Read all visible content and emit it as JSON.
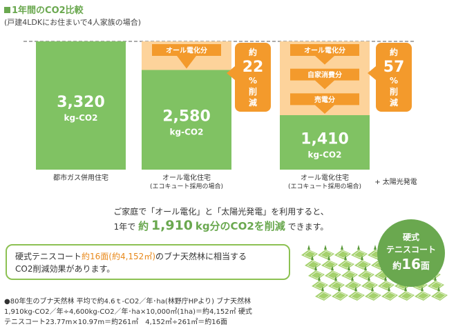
{
  "header": {
    "title": "1年間のCO2比較",
    "subtitle": "(戸建4LDKにお住まいで4人家族の場合)"
  },
  "chart_data": {
    "type": "bar",
    "unit": "kg-CO2",
    "categories": [
      "都市ガス併用住宅",
      "オール電化住宅",
      "オール電化住宅"
    ],
    "category_notes": [
      "",
      "(エコキュート採用の場合)",
      "(エコキュート採用の場合)"
    ],
    "category_extra": [
      "",
      "",
      "+ 太陽光発電"
    ],
    "values": [
      3320,
      2580,
      1410
    ],
    "value_labels": [
      "3,320",
      "2,580",
      "1,410"
    ],
    "ylim": [
      0,
      3320
    ],
    "reduction_labels": [
      [],
      [
        "オール電化分"
      ],
      [
        "オール電化分",
        "自家消費分",
        "売電分"
      ]
    ],
    "callouts": [
      {
        "prefix": "約",
        "number": "22",
        "suffix1": "%",
        "suffix2": "削",
        "suffix3": "減"
      },
      {
        "prefix": "約",
        "number": "57",
        "suffix1": "%",
        "suffix2": "削",
        "suffix3": "減"
      }
    ],
    "colors": {
      "bar": "#80c263",
      "reduction": "#fdd39b",
      "arrow": "#f39a2c",
      "callout": "#f39a2c"
    }
  },
  "summary": {
    "line1": "ご家庭で「オール電化」と「太陽光発電」を利用すると、",
    "line2_pre": "1年で",
    "line2_em1": "約",
    "line2_big": "1,910",
    "line2_em2": "kg分のCO2を削減",
    "line2_post": "できます。"
  },
  "tennis": {
    "text1": "硬式テニスコート",
    "highlight": "約16面(約4,152㎡)",
    "text2": "のブナ天然林に相当する",
    "text3": "CO2削減効果があります。",
    "badge_line1": "硬式",
    "badge_line2": "テニスコート",
    "badge_prefix": "約",
    "badge_number": "16",
    "badge_suffix": "面"
  },
  "footnotes": [
    "●80年生のブナ天然林 平均で約4.6ｔ-CO2／年･ha(林野庁HPより) ブナ天然林",
    "1,910kg-CO2／年÷4,600kg-CO2／年･ha×10,000㎡(1ha)＝約4,152㎡ 硬式",
    "テニスコート23.77m×10.97m＝約261㎡　4,152㎡÷261㎡＝約16面"
  ]
}
